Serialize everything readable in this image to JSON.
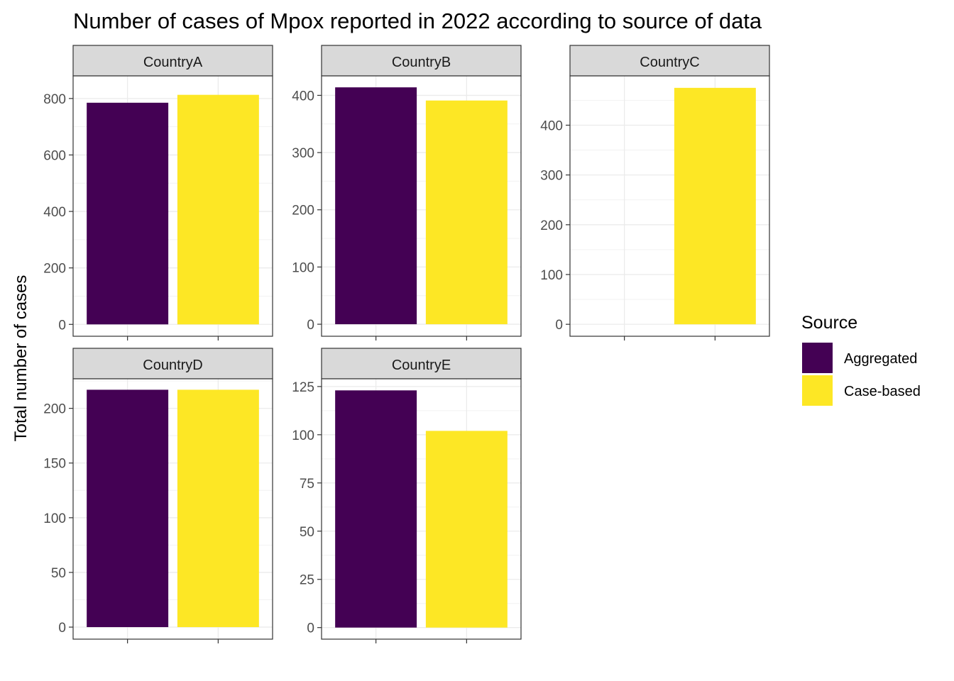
{
  "chart_data": {
    "type": "bar",
    "title": "Number of cases of Mpox reported in 2022 according to source of data",
    "xlabel": "",
    "ylabel": "Total number of cases",
    "grid": true,
    "facet_layout": "3 columns, 2 rows",
    "legend": {
      "title": "Source",
      "placement": "right",
      "entries": [
        {
          "label": "Aggregated",
          "color": "#440154"
        },
        {
          "label": "Case-based",
          "color": "#FDE725"
        }
      ]
    },
    "categories": [
      "Aggregated",
      "Case-based"
    ],
    "panels": [
      {
        "name": "CountryA",
        "values": [
          785,
          813
        ],
        "ylim": [
          -42,
          880
        ],
        "ticks": [
          0,
          200,
          400,
          600,
          800
        ]
      },
      {
        "name": "CountryB",
        "values": [
          414,
          391
        ],
        "ylim": [
          -21,
          434
        ],
        "ticks": [
          0,
          100,
          200,
          300,
          400
        ]
      },
      {
        "name": "CountryC",
        "values": [
          null,
          475
        ],
        "ylim": [
          -24,
          499
        ],
        "ticks": [
          0,
          100,
          200,
          300,
          400
        ]
      },
      {
        "name": "CountryD",
        "values": [
          217,
          217
        ],
        "ylim": [
          -11,
          227
        ],
        "ticks": [
          0,
          50,
          100,
          150,
          200
        ]
      },
      {
        "name": "CountryE",
        "values": [
          123,
          102
        ],
        "ylim": [
          -6,
          129
        ],
        "ticks": [
          0,
          25,
          50,
          75,
          100,
          125
        ]
      }
    ]
  }
}
